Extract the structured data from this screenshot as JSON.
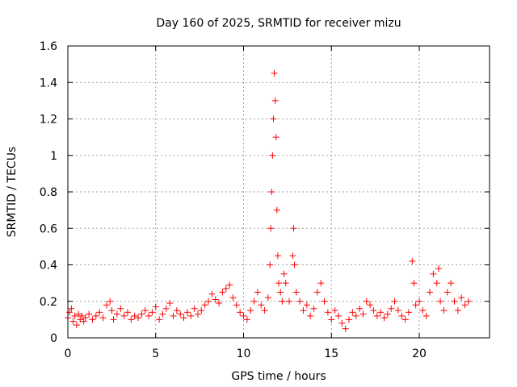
{
  "chart_data": {
    "type": "scatter",
    "title": "Day 160 of 2025, SRMTID for receiver mizu",
    "xlabel": "GPS time / hours",
    "ylabel": "SRMTID / TECUs",
    "xlim": [
      0,
      24
    ],
    "ylim": [
      0,
      1.6
    ],
    "xticks": [
      0,
      5,
      10,
      15,
      20
    ],
    "xtick_labels": [
      "0",
      "5",
      "10",
      "15",
      "20"
    ],
    "yticks": [
      0,
      0.2,
      0.4,
      0.6,
      0.8,
      1.0,
      1.2,
      1.4,
      1.6
    ],
    "ytick_labels": [
      "0",
      "0.2",
      "0.4",
      "0.6",
      "0.8",
      "1",
      "1.2",
      "1.4",
      "1.6"
    ],
    "grid": true,
    "marker": "+",
    "color": "#ff0000",
    "series": [
      {
        "name": "SRMTID",
        "x": [
          0.0,
          0.1,
          0.2,
          0.3,
          0.4,
          0.5,
          0.6,
          0.7,
          0.8,
          0.9,
          1.0,
          1.2,
          1.4,
          1.6,
          1.8,
          2.0,
          2.2,
          2.4,
          2.5,
          2.6,
          2.8,
          3.0,
          3.2,
          3.4,
          3.6,
          3.8,
          4.0,
          4.2,
          4.4,
          4.6,
          4.8,
          5.0,
          5.2,
          5.4,
          5.6,
          5.8,
          6.0,
          6.2,
          6.4,
          6.6,
          6.8,
          7.0,
          7.2,
          7.4,
          7.6,
          7.8,
          8.0,
          8.2,
          8.4,
          8.6,
          8.8,
          9.0,
          9.2,
          9.4,
          9.6,
          9.8,
          10.0,
          10.2,
          10.4,
          10.6,
          10.8,
          11.0,
          11.2,
          11.4,
          11.5,
          11.55,
          11.6,
          11.65,
          11.7,
          11.75,
          11.8,
          11.85,
          11.9,
          11.95,
          12.0,
          12.1,
          12.2,
          12.3,
          12.4,
          12.6,
          12.8,
          12.85,
          12.9,
          13.0,
          13.2,
          13.4,
          13.6,
          13.8,
          14.0,
          14.2,
          14.4,
          14.6,
          14.8,
          15.0,
          15.2,
          15.4,
          15.6,
          15.8,
          16.0,
          16.2,
          16.4,
          16.6,
          16.8,
          17.0,
          17.2,
          17.4,
          17.6,
          17.8,
          18.0,
          18.2,
          18.4,
          18.6,
          18.8,
          19.0,
          19.2,
          19.4,
          19.6,
          19.7,
          19.8,
          20.0,
          20.2,
          20.4,
          20.6,
          20.8,
          21.0,
          21.1,
          21.2,
          21.4,
          21.6,
          21.8,
          22.0,
          22.2,
          22.4,
          22.6,
          22.8
        ],
        "y": [
          0.11,
          0.14,
          0.16,
          0.09,
          0.12,
          0.07,
          0.13,
          0.1,
          0.12,
          0.09,
          0.11,
          0.13,
          0.1,
          0.12,
          0.14,
          0.11,
          0.18,
          0.2,
          0.15,
          0.1,
          0.13,
          0.16,
          0.12,
          0.14,
          0.1,
          0.12,
          0.11,
          0.13,
          0.15,
          0.12,
          0.14,
          0.17,
          0.1,
          0.13,
          0.16,
          0.19,
          0.12,
          0.15,
          0.13,
          0.11,
          0.14,
          0.12,
          0.16,
          0.13,
          0.15,
          0.18,
          0.2,
          0.24,
          0.21,
          0.19,
          0.25,
          0.27,
          0.29,
          0.22,
          0.18,
          0.14,
          0.12,
          0.1,
          0.15,
          0.2,
          0.25,
          0.18,
          0.15,
          0.22,
          0.4,
          0.6,
          0.8,
          1.0,
          1.2,
          1.45,
          1.3,
          1.1,
          0.7,
          0.45,
          0.3,
          0.25,
          0.2,
          0.35,
          0.3,
          0.2,
          0.45,
          0.6,
          0.4,
          0.25,
          0.2,
          0.15,
          0.18,
          0.12,
          0.16,
          0.25,
          0.3,
          0.2,
          0.14,
          0.1,
          0.15,
          0.12,
          0.08,
          0.05,
          0.1,
          0.14,
          0.12,
          0.16,
          0.13,
          0.2,
          0.18,
          0.15,
          0.12,
          0.14,
          0.11,
          0.13,
          0.16,
          0.2,
          0.15,
          0.12,
          0.1,
          0.14,
          0.42,
          0.3,
          0.18,
          0.2,
          0.15,
          0.12,
          0.25,
          0.35,
          0.3,
          0.38,
          0.2,
          0.15,
          0.25,
          0.3,
          0.2,
          0.15,
          0.22,
          0.18,
          0.2
        ]
      }
    ]
  }
}
